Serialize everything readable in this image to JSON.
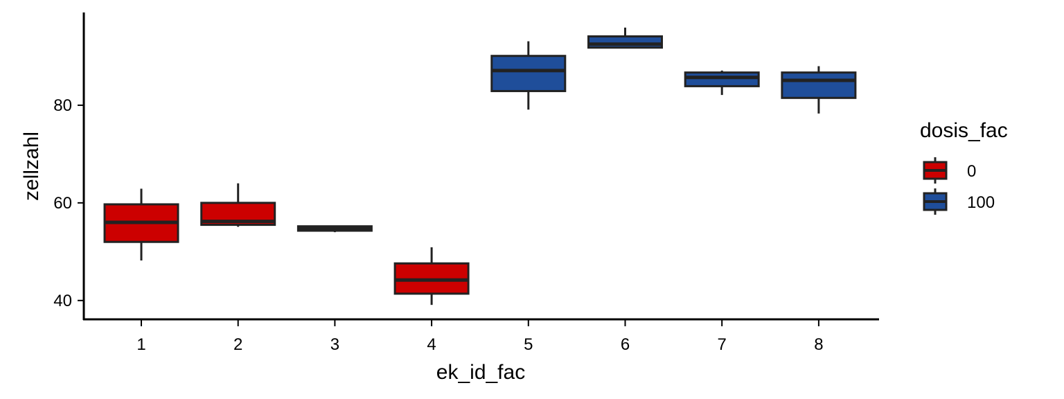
{
  "chart_data": {
    "type": "boxplot",
    "xlabel": "ek_id_fac",
    "ylabel": "zellzahl",
    "categories": [
      "1",
      "2",
      "3",
      "4",
      "5",
      "6",
      "7",
      "8"
    ],
    "yticks": [
      40,
      60,
      80
    ],
    "ylim": [
      36,
      99
    ],
    "grid": false,
    "legend": {
      "title": "dosis_fac",
      "position": "right",
      "entries": [
        {
          "label": "0",
          "color": "#CC0000"
        },
        {
          "label": "100",
          "color": "#1F4E9A"
        }
      ]
    },
    "boxes": [
      {
        "category": "1",
        "group": "0",
        "min": 48.2,
        "q1": 52.0,
        "median": 56.0,
        "q3": 59.7,
        "max": 62.9
      },
      {
        "category": "2",
        "group": "0",
        "min": 55.1,
        "q1": 55.5,
        "median": 56.2,
        "q3": 60.0,
        "max": 64.0
      },
      {
        "category": "3",
        "group": "0",
        "min": 54.0,
        "q1": 54.3,
        "median": 54.8,
        "q3": 55.2,
        "max": 55.3
      },
      {
        "category": "4",
        "group": "0",
        "min": 39.1,
        "q1": 41.4,
        "median": 44.2,
        "q3": 47.6,
        "max": 50.9
      },
      {
        "category": "5",
        "group": "100",
        "min": 79.1,
        "q1": 82.9,
        "median": 87.1,
        "q3": 90.1,
        "max": 93.1
      },
      {
        "category": "6",
        "group": "100",
        "min": 91.8,
        "q1": 91.8,
        "median": 92.5,
        "q3": 94.1,
        "max": 95.9
      },
      {
        "category": "7",
        "group": "100",
        "min": 82.1,
        "q1": 83.9,
        "median": 85.7,
        "q3": 86.7,
        "max": 87.1
      },
      {
        "category": "8",
        "group": "100",
        "min": 78.3,
        "q1": 81.5,
        "median": 85.1,
        "q3": 86.7,
        "max": 88.0
      }
    ]
  }
}
